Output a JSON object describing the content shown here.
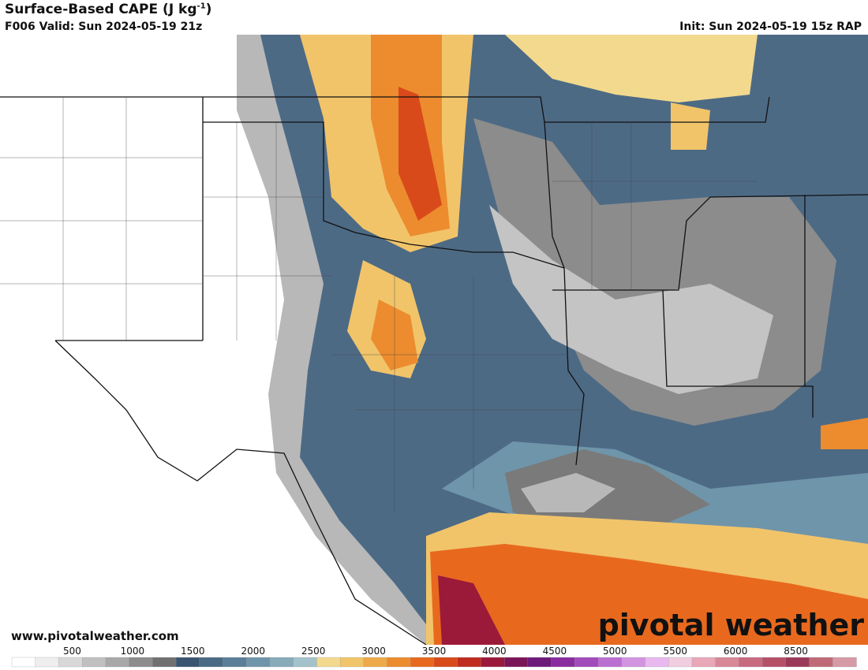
{
  "header": {
    "title": "Surface-Based CAPE (J kg",
    "title_sup": "-1",
    "title_end": ")",
    "valid": "F006 Valid: Sun 2024-05-19 21z",
    "init": "Init: Sun 2024-05-19 15z RAP"
  },
  "footer": {
    "website": "www.pivotalweather.com",
    "logo": "pivotal weather"
  },
  "colorbar": {
    "labels": [
      "500",
      "1000",
      "1500",
      "2000",
      "2500",
      "3000",
      "3500",
      "4000",
      "4500",
      "5000",
      "5500",
      "6000",
      "8500"
    ],
    "colors": [
      "#ffffff",
      "#eeeeee",
      "#d8d8d8",
      "#c0c0c0",
      "#a8a8a8",
      "#8c8c8c",
      "#707070",
      "#3b5470",
      "#4a6a85",
      "#5b7f98",
      "#6f95aa",
      "#88abba",
      "#a3c2cb",
      "#f3d98e",
      "#f1c46a",
      "#eeaa4a",
      "#ec8c2e",
      "#e8691e",
      "#d94a1a",
      "#c02c20",
      "#9b1a3a",
      "#7a1558",
      "#6e1a7a",
      "#8a2ca0",
      "#a24bbb",
      "#bb6fd0",
      "#d294e0",
      "#e8b8ee",
      "#f1cde0",
      "#e8a8b8",
      "#d98898",
      "#c86a80",
      "#b55068",
      "#9a3a58",
      "#c06a78",
      "#d69aa6"
    ]
  }
}
